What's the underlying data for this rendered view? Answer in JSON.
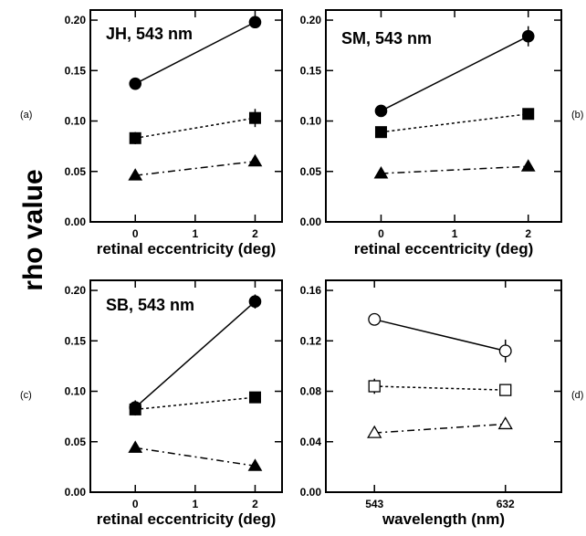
{
  "figure": {
    "ylabel": "rho value",
    "panel_letters": [
      "(a)",
      "(b)",
      "(c)",
      "(d)"
    ]
  },
  "chart_data": [
    {
      "type": "line",
      "panel": "(a)",
      "title": "JH, 543 nm",
      "xlabel": "retinal eccentricity (deg)",
      "ylabel": "rho value",
      "xlim": [
        -0.75,
        2.45
      ],
      "ylim": [
        0,
        0.21
      ],
      "xticks": [
        0,
        1,
        2
      ],
      "xticklabels": [
        "0",
        "1",
        "2"
      ],
      "yticks": [
        0,
        0.05,
        0.1,
        0.15,
        0.2
      ],
      "yticklabels": [
        "0.00",
        "0.05",
        "0.10",
        "0.15",
        "0.20"
      ],
      "x": [
        0,
        2
      ],
      "series": [
        {
          "marker": "circle",
          "fill": "filled",
          "line": "solid",
          "values": [
            0.137,
            0.198
          ],
          "err": [
            0.003,
            0.003
          ]
        },
        {
          "marker": "square",
          "fill": "filled",
          "line": "dotted",
          "values": [
            0.083,
            0.103
          ],
          "err": [
            0.006,
            0.009
          ]
        },
        {
          "marker": "triangle",
          "fill": "filled",
          "line": "dashdot",
          "values": [
            0.046,
            0.06
          ],
          "err": [
            0.002,
            0.003
          ]
        }
      ]
    },
    {
      "type": "line",
      "panel": "(b)",
      "title": "SM, 543 nm",
      "xlabel": "retinal eccentricity (deg)",
      "ylabel": "rho value",
      "xlim": [
        -0.75,
        2.45
      ],
      "ylim": [
        0,
        0.21
      ],
      "xticks": [
        0,
        1,
        2
      ],
      "xticklabels": [
        "0",
        "1",
        "2"
      ],
      "yticks": [
        0,
        0.05,
        0.1,
        0.15,
        0.2
      ],
      "yticklabels": [
        "0.00",
        "0.05",
        "0.10",
        "0.15",
        "0.20"
      ],
      "x": [
        0,
        2
      ],
      "series": [
        {
          "marker": "circle",
          "fill": "filled",
          "line": "solid",
          "values": [
            0.11,
            0.184
          ],
          "err": [
            0.003,
            0.01
          ]
        },
        {
          "marker": "square",
          "fill": "filled",
          "line": "dotted",
          "values": [
            0.089,
            0.107
          ],
          "err": [
            0.002,
            0.002
          ]
        },
        {
          "marker": "triangle",
          "fill": "filled",
          "line": "dashdot",
          "values": [
            0.048,
            0.055
          ],
          "err": [
            0.002,
            0.002
          ]
        }
      ]
    },
    {
      "type": "line",
      "panel": "(c)",
      "title": "SB, 543 nm",
      "xlabel": "retinal eccentricity (deg)",
      "ylabel": "rho value",
      "xlim": [
        -0.75,
        2.45
      ],
      "ylim": [
        0,
        0.21
      ],
      "xticks": [
        0,
        1,
        2
      ],
      "xticklabels": [
        "0",
        "1",
        "2"
      ],
      "yticks": [
        0,
        0.05,
        0.1,
        0.15,
        0.2
      ],
      "yticklabels": [
        "0.00",
        "0.05",
        "0.10",
        "0.15",
        "0.20"
      ],
      "x": [
        0,
        2
      ],
      "series": [
        {
          "marker": "circle",
          "fill": "filled",
          "line": "solid",
          "values": [
            0.084,
            0.189
          ],
          "err": [
            0.007,
            0.007
          ]
        },
        {
          "marker": "square",
          "fill": "filled",
          "line": "dotted",
          "values": [
            0.082,
            0.094
          ],
          "err": [
            0.006,
            0.002
          ]
        },
        {
          "marker": "triangle",
          "fill": "filled",
          "line": "dashdot",
          "values": [
            0.044,
            0.026
          ],
          "err": [
            0.002,
            0.002
          ]
        }
      ]
    },
    {
      "type": "line",
      "panel": "(d)",
      "title": "",
      "xlabel": "wavelength (nm)",
      "ylabel": "rho value",
      "xlim": [
        510,
        670
      ],
      "ylim": [
        0,
        0.168
      ],
      "xticks": [
        543,
        632
      ],
      "xticklabels": [
        "543",
        "632"
      ],
      "yticks": [
        0,
        0.04,
        0.08,
        0.12,
        0.16
      ],
      "yticklabels": [
        "0.00",
        "0.04",
        "0.08",
        "0.12",
        "0.16"
      ],
      "x": [
        543,
        632
      ],
      "series": [
        {
          "marker": "circle",
          "fill": "open",
          "line": "solid",
          "values": [
            0.137,
            0.112
          ],
          "err": [
            0.002,
            0.009
          ]
        },
        {
          "marker": "square",
          "fill": "open",
          "line": "dotted",
          "values": [
            0.084,
            0.081
          ],
          "err": [
            0.006,
            0.003
          ]
        },
        {
          "marker": "triangle",
          "fill": "open",
          "line": "dashdot",
          "values": [
            0.047,
            0.054
          ],
          "err": [
            0.002,
            0.004
          ]
        }
      ]
    }
  ]
}
